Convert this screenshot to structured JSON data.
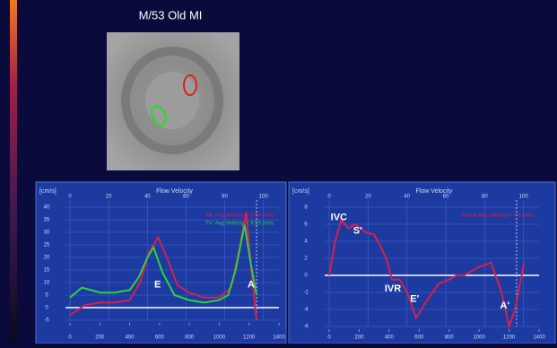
{
  "slide": {
    "title": "M/53 Old MI"
  },
  "chart_data": [
    {
      "type": "line",
      "y_unit": "[cm/s]",
      "title": "Flow Velocity",
      "xlim": [
        0,
        1400
      ],
      "xticks": [
        0,
        200,
        400,
        600,
        800,
        1000,
        1200,
        1400
      ],
      "x2lim": [
        0,
        108
      ],
      "x2ticks": [
        0,
        20,
        40,
        60,
        80,
        100
      ],
      "ylim": [
        -5,
        40
      ],
      "yticks": [
        -5,
        0,
        5,
        10,
        15,
        20,
        25,
        30,
        35,
        40
      ],
      "cursor_x": 1250,
      "series": [
        {
          "name": "MI: Avg Velocity = 8.53 cm/s",
          "color": "#d8204a",
          "x": [
            0,
            50,
            100,
            200,
            300,
            400,
            470,
            530,
            590,
            650,
            720,
            800,
            900,
            1000,
            1080,
            1130,
            1180,
            1215,
            1250
          ],
          "values": [
            -3,
            -1,
            1,
            2,
            2,
            3,
            10,
            22,
            28,
            20,
            9,
            6,
            4,
            4,
            8,
            22,
            38,
            15,
            -5
          ]
        },
        {
          "name": "TV: Avg Velocity = 9.53 cm/s",
          "color": "#30d040",
          "x": [
            0,
            40,
            80,
            140,
            200,
            300,
            400,
            460,
            520,
            560,
            620,
            700,
            800,
            900,
            1000,
            1060,
            1110,
            1170,
            1210,
            1250
          ],
          "values": [
            4,
            6,
            8,
            7,
            6,
            6,
            7,
            12,
            20,
            24,
            14,
            5,
            3,
            2,
            3,
            5,
            15,
            33,
            18,
            5
          ]
        }
      ],
      "annotations": [
        "E",
        "A"
      ]
    },
    {
      "type": "line",
      "y_unit": "[cm/s]",
      "title": "Flow Velocity",
      "xlim": [
        0,
        1400
      ],
      "xticks": [
        0,
        200,
        400,
        600,
        800,
        1000,
        1200,
        1400
      ],
      "x2lim": [
        0,
        108
      ],
      "x2ticks": [
        0,
        20,
        40,
        60,
        80,
        100
      ],
      "ylim": [
        -6,
        8
      ],
      "yticks": [
        -6,
        -4,
        -2,
        0,
        2,
        4,
        6,
        8
      ],
      "cursor_x": 1250,
      "series": [
        {
          "name": "Tissue Avg Velocity = 0.5 cm/s",
          "color": "#d8204a",
          "x": [
            0,
            40,
            80,
            130,
            170,
            250,
            300,
            340,
            380,
            420,
            470,
            520,
            580,
            650,
            730,
            800,
            850,
            900,
            1000,
            1080,
            1150,
            1200,
            1240,
            1300
          ],
          "values": [
            0,
            4,
            6.5,
            5.5,
            6,
            5,
            4.8,
            3.5,
            2,
            -0.5,
            -0.5,
            -2,
            -5,
            -3,
            -1,
            -0.5,
            0,
            0,
            1,
            1.5,
            -2,
            -6,
            -4,
            1.5
          ]
        }
      ],
      "annotations": [
        "IVC",
        "S'",
        "IVR",
        "E'",
        "A'"
      ]
    }
  ]
}
